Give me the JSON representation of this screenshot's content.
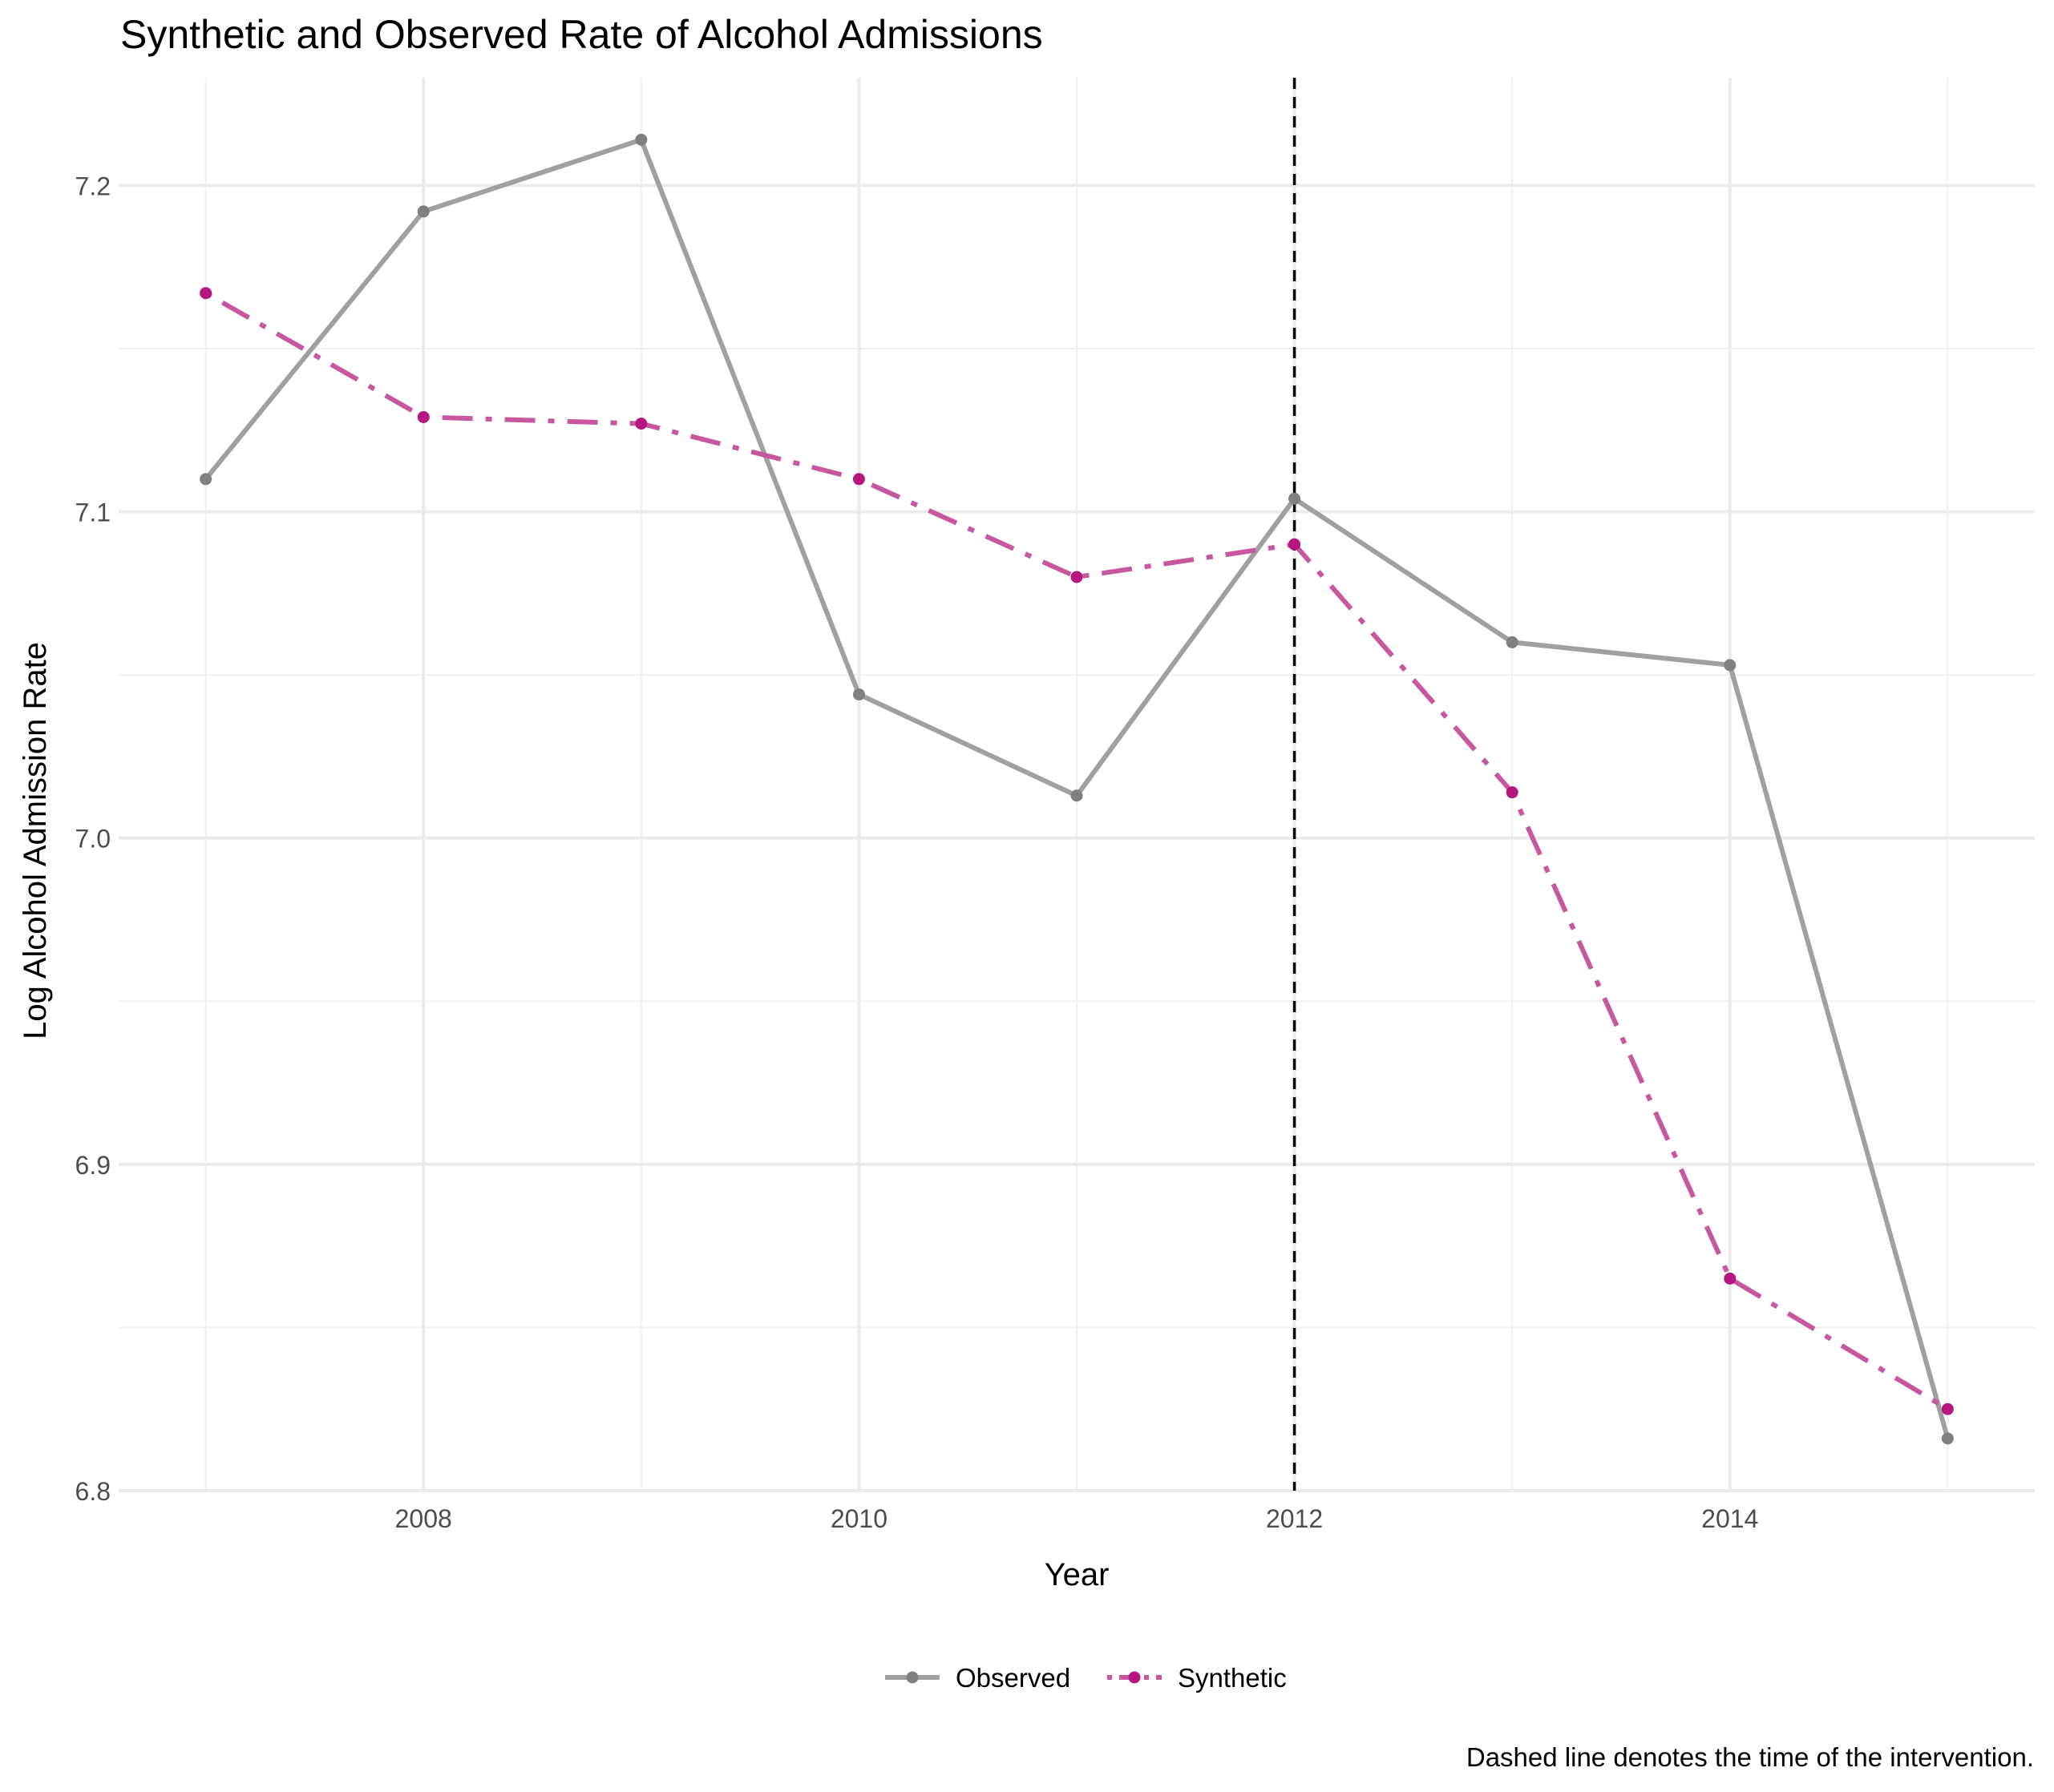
{
  "chart_data": {
    "type": "line",
    "title": "Synthetic and Observed Rate of Alcohol Admissions",
    "xlabel": "Year",
    "ylabel": "Log Alcohol Admission Rate",
    "caption": "Dashed line denotes the time of the intervention.",
    "x": [
      2007,
      2008,
      2009,
      2010,
      2011,
      2012,
      2013,
      2014,
      2015
    ],
    "xlim": [
      2006.6,
      2015.4
    ],
    "ylim": [
      6.8,
      7.233
    ],
    "x_ticks": [
      2008,
      2010,
      2012,
      2014
    ],
    "x_tick_labels": [
      "2008",
      "2010",
      "2012",
      "2014"
    ],
    "x_minor_ticks": [
      2007,
      2009,
      2011,
      2013,
      2015
    ],
    "y_ticks": [
      6.8,
      6.9,
      7.0,
      7.1,
      7.2
    ],
    "y_tick_labels": [
      "6.8",
      "6.9",
      "7.0",
      "7.1",
      "7.2"
    ],
    "y_minor_ticks": [
      6.85,
      6.95,
      7.05,
      7.15
    ],
    "grid": true,
    "legend_position": "bottom",
    "intervention_x": 2012,
    "series": [
      {
        "name": "Observed",
        "values": [
          7.11,
          7.192,
          7.214,
          7.044,
          7.013,
          7.104,
          7.06,
          7.053,
          6.816
        ],
        "color": "#a0a0a0",
        "point_color": "#808080",
        "line_style": "solid"
      },
      {
        "name": "Synthetic",
        "values": [
          7.167,
          7.129,
          7.127,
          7.11,
          7.08,
          7.09,
          7.014,
          6.865,
          6.825
        ],
        "color": "#c7589e",
        "point_color": "#b5177f",
        "line_style": "dotdash"
      }
    ]
  }
}
